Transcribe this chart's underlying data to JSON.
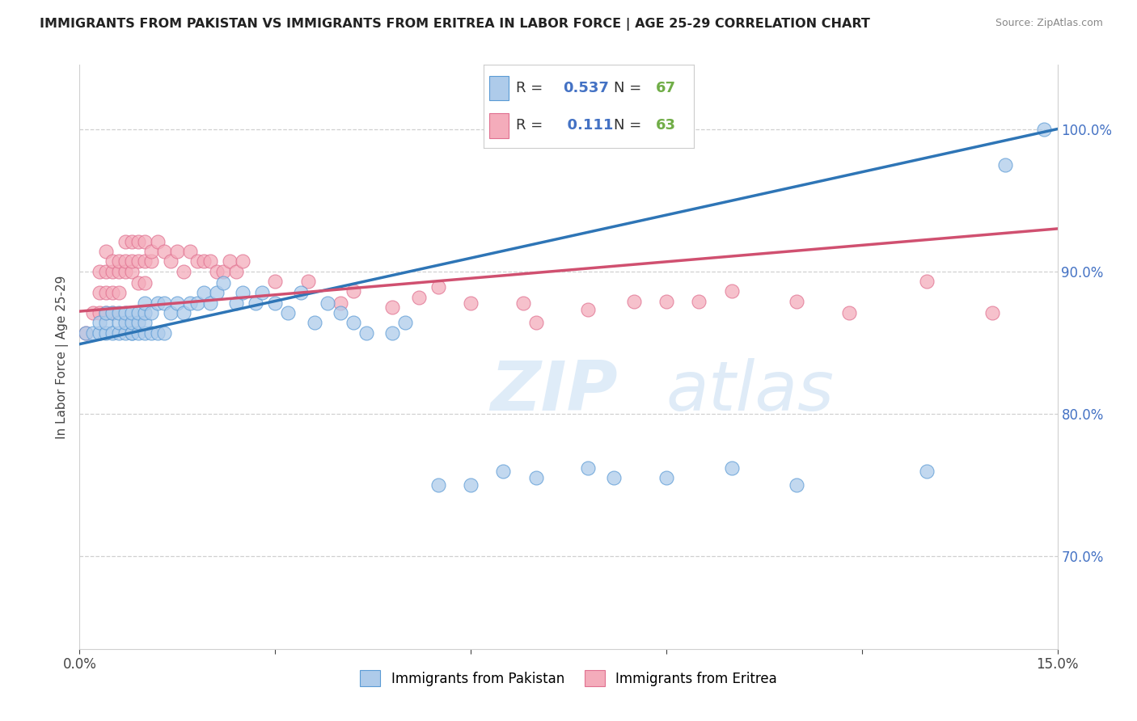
{
  "title": "IMMIGRANTS FROM PAKISTAN VS IMMIGRANTS FROM ERITREA IN LABOR FORCE | AGE 25-29 CORRELATION CHART",
  "source": "Source: ZipAtlas.com",
  "ylabel": "In Labor Force | Age 25-29",
  "xlim": [
    0.0,
    0.15
  ],
  "ylim": [
    0.635,
    1.045
  ],
  "yticks_right": [
    0.7,
    0.8,
    0.9,
    1.0
  ],
  "ytick_right_labels": [
    "70.0%",
    "80.0%",
    "90.0%",
    "100.0%"
  ],
  "r_pakistan": 0.537,
  "n_pakistan": 67,
  "r_eritrea": 0.111,
  "n_eritrea": 63,
  "blue_color": "#aecbea",
  "blue_edge_color": "#5b9bd5",
  "blue_line_color": "#2e75b6",
  "pink_color": "#f4acbb",
  "pink_edge_color": "#e07090",
  "pink_line_color": "#d05070",
  "legend_r_color": "#4472c4",
  "legend_n_color": "#70ad47",
  "pakistan_x": [
    0.001,
    0.002,
    0.003,
    0.003,
    0.004,
    0.004,
    0.004,
    0.005,
    0.005,
    0.006,
    0.006,
    0.006,
    0.007,
    0.007,
    0.007,
    0.008,
    0.008,
    0.008,
    0.008,
    0.009,
    0.009,
    0.009,
    0.01,
    0.01,
    0.01,
    0.01,
    0.011,
    0.011,
    0.012,
    0.012,
    0.013,
    0.013,
    0.014,
    0.015,
    0.016,
    0.017,
    0.018,
    0.019,
    0.02,
    0.021,
    0.022,
    0.024,
    0.025,
    0.027,
    0.028,
    0.03,
    0.032,
    0.034,
    0.036,
    0.038,
    0.04,
    0.042,
    0.044,
    0.048,
    0.05,
    0.055,
    0.06,
    0.065,
    0.07,
    0.078,
    0.082,
    0.09,
    0.1,
    0.11,
    0.13,
    0.142,
    0.148
  ],
  "pakistan_y": [
    0.857,
    0.857,
    0.857,
    0.864,
    0.857,
    0.864,
    0.871,
    0.857,
    0.871,
    0.857,
    0.864,
    0.871,
    0.857,
    0.864,
    0.871,
    0.857,
    0.857,
    0.864,
    0.871,
    0.857,
    0.864,
    0.871,
    0.857,
    0.864,
    0.871,
    0.878,
    0.857,
    0.871,
    0.857,
    0.878,
    0.857,
    0.878,
    0.871,
    0.878,
    0.871,
    0.878,
    0.878,
    0.885,
    0.878,
    0.885,
    0.892,
    0.878,
    0.885,
    0.878,
    0.885,
    0.878,
    0.871,
    0.885,
    0.864,
    0.878,
    0.871,
    0.864,
    0.857,
    0.857,
    0.864,
    0.75,
    0.75,
    0.76,
    0.755,
    0.762,
    0.755,
    0.755,
    0.762,
    0.75,
    0.76,
    0.975,
    1.0
  ],
  "eritrea_x": [
    0.001,
    0.002,
    0.003,
    0.003,
    0.003,
    0.004,
    0.004,
    0.004,
    0.004,
    0.005,
    0.005,
    0.005,
    0.005,
    0.006,
    0.006,
    0.006,
    0.007,
    0.007,
    0.007,
    0.008,
    0.008,
    0.008,
    0.009,
    0.009,
    0.009,
    0.01,
    0.01,
    0.01,
    0.011,
    0.011,
    0.012,
    0.013,
    0.014,
    0.015,
    0.016,
    0.017,
    0.018,
    0.019,
    0.02,
    0.021,
    0.022,
    0.023,
    0.024,
    0.025,
    0.03,
    0.035,
    0.04,
    0.042,
    0.048,
    0.052,
    0.055,
    0.06,
    0.068,
    0.07,
    0.078,
    0.085,
    0.09,
    0.095,
    0.1,
    0.11,
    0.118,
    0.13,
    0.14
  ],
  "eritrea_y": [
    0.857,
    0.871,
    0.871,
    0.885,
    0.9,
    0.871,
    0.885,
    0.9,
    0.914,
    0.871,
    0.885,
    0.9,
    0.907,
    0.885,
    0.9,
    0.907,
    0.9,
    0.907,
    0.921,
    0.9,
    0.907,
    0.921,
    0.892,
    0.907,
    0.921,
    0.892,
    0.907,
    0.921,
    0.907,
    0.914,
    0.921,
    0.914,
    0.907,
    0.914,
    0.9,
    0.914,
    0.907,
    0.907,
    0.907,
    0.9,
    0.9,
    0.907,
    0.9,
    0.907,
    0.893,
    0.893,
    0.878,
    0.886,
    0.875,
    0.882,
    0.889,
    0.878,
    0.878,
    0.864,
    0.873,
    0.879,
    0.879,
    0.879,
    0.886,
    0.879,
    0.871,
    0.893,
    0.871
  ],
  "pk_line_x0": 0.0,
  "pk_line_y0": 0.849,
  "pk_line_x1": 0.15,
  "pk_line_y1": 1.0,
  "er_line_x0": 0.0,
  "er_line_y0": 0.872,
  "er_line_x1": 0.15,
  "er_line_y1": 0.93,
  "watermark_text": "ZIPatlas",
  "watermark_color": "#cce0f5",
  "background_color": "#ffffff"
}
